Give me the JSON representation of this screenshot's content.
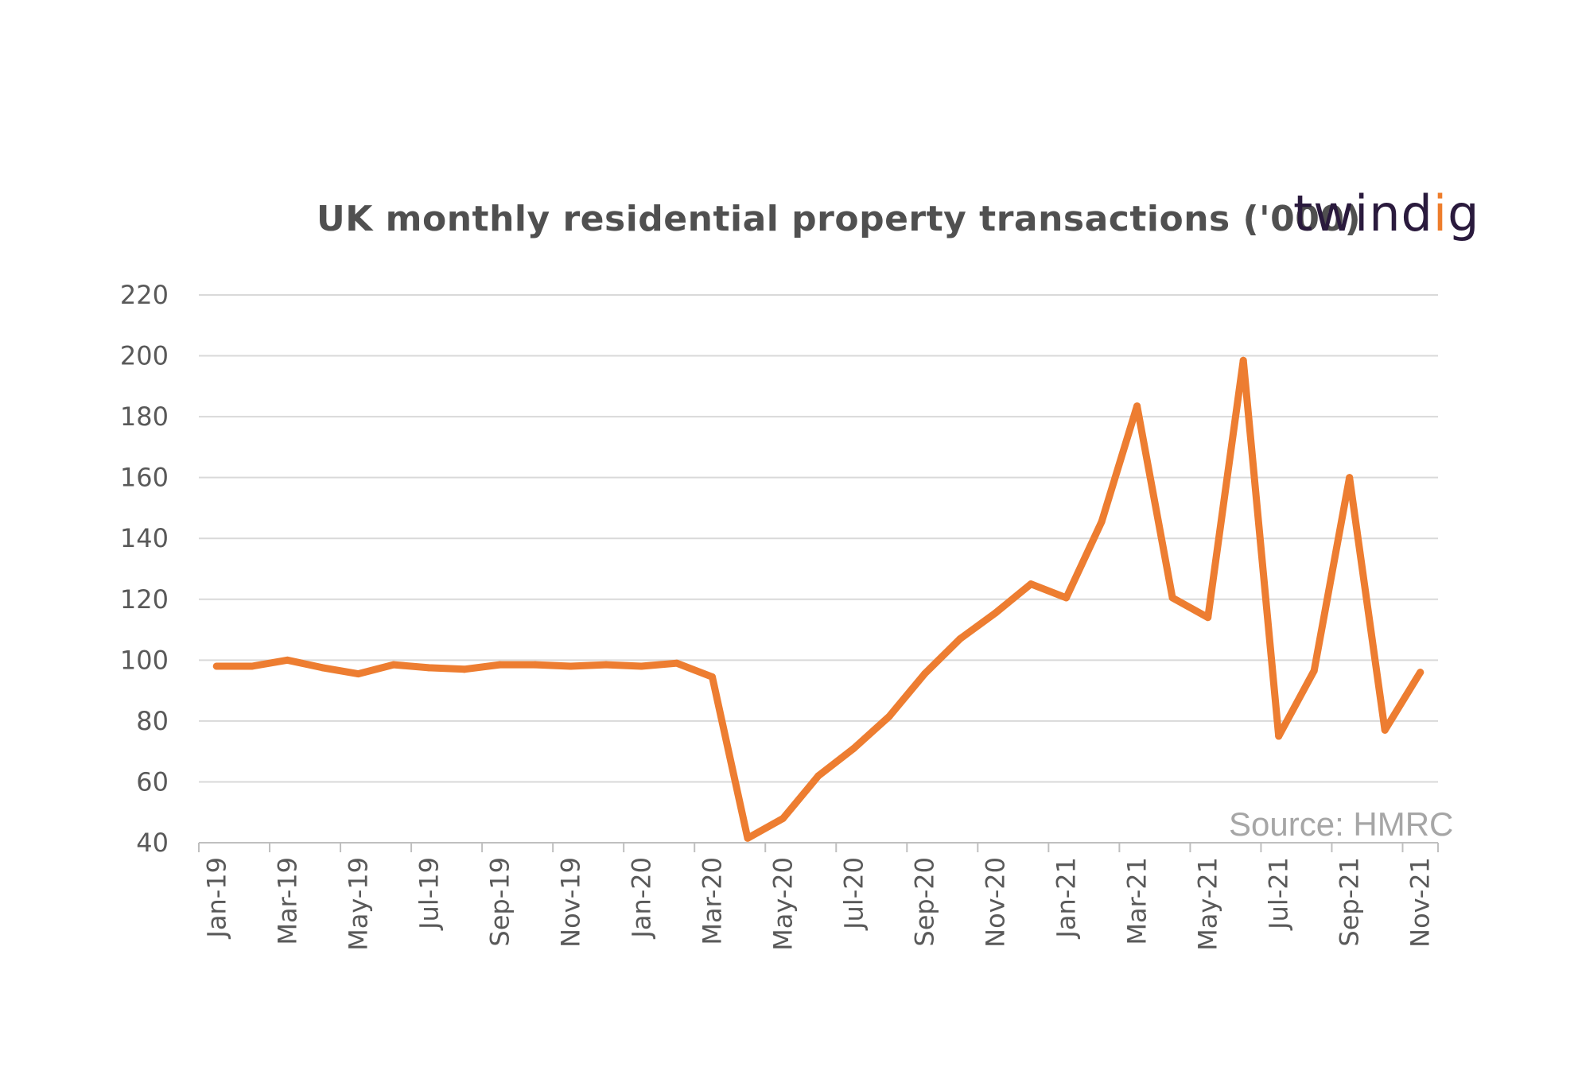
{
  "chart_data": {
    "type": "line",
    "title": "UK monthly residential property transactions  ('000)",
    "source": "Source: HMRC",
    "brand": "twindig",
    "xlabel": "",
    "ylabel": "",
    "ylim": [
      40,
      220
    ],
    "y_ticks": [
      40,
      60,
      80,
      100,
      120,
      140,
      160,
      180,
      200,
      220
    ],
    "grid": true,
    "legend": "none",
    "line_color": "#ed7d31",
    "grid_color": "#d9d9d9",
    "brand_accent_color": "#ee7d2b",
    "x": [
      "Jan-19",
      "Feb-19",
      "Mar-19",
      "Apr-19",
      "May-19",
      "Jun-19",
      "Jul-19",
      "Aug-19",
      "Sep-19",
      "Oct-19",
      "Nov-19",
      "Dec-19",
      "Jan-20",
      "Feb-20",
      "Mar-20",
      "Apr-20",
      "May-20",
      "Jun-20",
      "Jul-20",
      "Aug-20",
      "Sep-20",
      "Oct-20",
      "Nov-20",
      "Dec-20",
      "Jan-21",
      "Feb-21",
      "Mar-21",
      "Apr-21",
      "May-21",
      "Jun-21",
      "Jul-21",
      "Aug-21",
      "Sep-21",
      "Oct-21",
      "Nov-21"
    ],
    "x_tick_labels": [
      "Jan-19",
      "Mar-19",
      "May-19",
      "Jul-19",
      "Sep-19",
      "Nov-19",
      "Jan-20",
      "Mar-20",
      "May-20",
      "Jul-20",
      "Sep-20",
      "Nov-20",
      "Jan-21",
      "Mar-21",
      "May-21",
      "Jul-21",
      "Sep-21",
      "Nov-21"
    ],
    "series": [
      {
        "values": [
          98,
          98,
          100,
          97.5,
          95.5,
          98.5,
          97.5,
          97,
          98.5,
          98.5,
          98,
          98.5,
          98,
          99,
          94.5,
          41.5,
          48,
          62,
          71,
          81.5,
          95.5,
          107,
          115.5,
          125,
          120.5,
          145.5,
          183.5,
          120.5,
          114,
          198.5,
          75,
          96.5,
          160,
          77,
          96
        ]
      }
    ]
  }
}
